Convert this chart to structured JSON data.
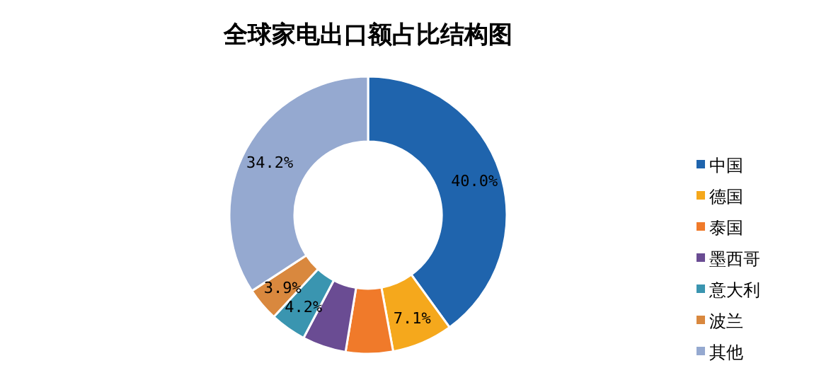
{
  "chart_data": {
    "type": "donut",
    "title": "全球家电出口额占比结构图",
    "categories": [
      "中国",
      "德国",
      "泰国",
      "墨西哥",
      "意大利",
      "波兰",
      "其他"
    ],
    "values": [
      40.0,
      7.1,
      5.5,
      5.1,
      4.2,
      3.9,
      34.2
    ],
    "colors": [
      "#1f64ad",
      "#f5a81c",
      "#f07a2a",
      "#6a4c93",
      "#3a95b0",
      "#d9883e",
      "#95a9d0"
    ],
    "value_labels": [
      "40.0%",
      "7.1%",
      null,
      null,
      "4.2%",
      "3.9%",
      "34.2%"
    ],
    "legend": "right"
  }
}
